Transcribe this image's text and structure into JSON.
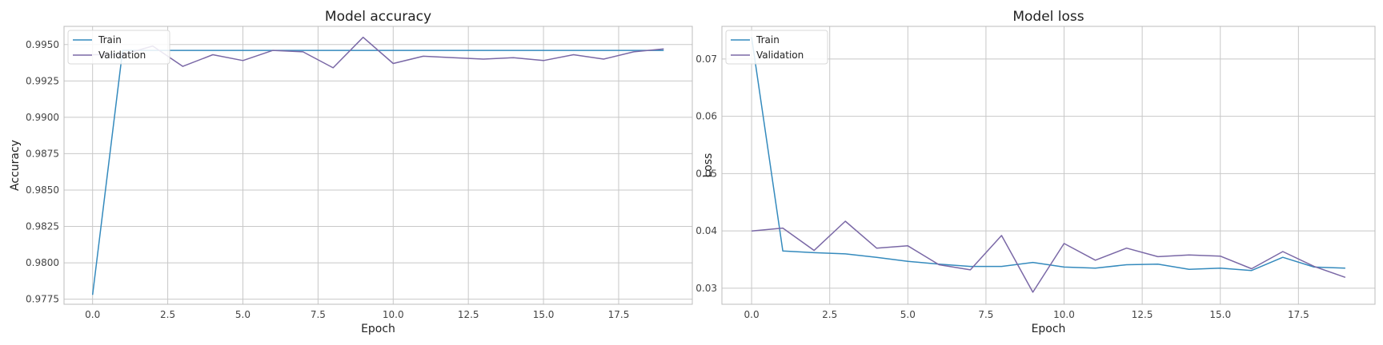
{
  "colors": {
    "train": "#348abd",
    "validation": "#7a68a6",
    "grid": "#c8c8c8",
    "frame": "#bcbcbc"
  },
  "chart_data": [
    {
      "type": "line",
      "title": "Model accuracy",
      "xlabel": "Epoch",
      "ylabel": "Accuracy",
      "xlim": [
        -0.95,
        19.95
      ],
      "ylim": [
        0.97715,
        0.99625
      ],
      "xticks": [
        0.0,
        2.5,
        5.0,
        7.5,
        10.0,
        12.5,
        15.0,
        17.5
      ],
      "xtick_labels": [
        "0.0",
        "2.5",
        "5.0",
        "7.5",
        "10.0",
        "12.5",
        "15.0",
        "17.5"
      ],
      "yticks": [
        0.9775,
        0.98,
        0.9825,
        0.985,
        0.9875,
        0.99,
        0.9925,
        0.995
      ],
      "ytick_labels": [
        "0.9775",
        "0.9800",
        "0.9825",
        "0.9850",
        "0.9875",
        "0.9900",
        "0.9925",
        "0.9950"
      ],
      "grid": true,
      "legend": "top-left",
      "x": [
        0,
        1,
        2,
        3,
        4,
        5,
        6,
        7,
        8,
        9,
        10,
        11,
        12,
        13,
        14,
        15,
        16,
        17,
        18,
        19
      ],
      "series": [
        {
          "name": "Train",
          "color": "#348abd",
          "values": [
            0.9778,
            0.9946,
            0.9946,
            0.9946,
            0.9946,
            0.9946,
            0.9946,
            0.9946,
            0.9946,
            0.9946,
            0.9946,
            0.9946,
            0.9946,
            0.9946,
            0.9946,
            0.9946,
            0.9946,
            0.9946,
            0.9946,
            0.9946
          ]
        },
        {
          "name": "Validation",
          "color": "#7a68a6",
          "values": [
            0.9943,
            0.9943,
            0.9949,
            0.9935,
            0.9943,
            0.9939,
            0.9946,
            0.9945,
            0.9934,
            0.9955,
            0.9937,
            0.9942,
            0.9941,
            0.994,
            0.9941,
            0.9939,
            0.9943,
            0.994,
            0.9945,
            0.9947
          ]
        }
      ]
    },
    {
      "type": "line",
      "title": "Model loss",
      "xlabel": "Epoch",
      "ylabel": "Loss",
      "xlim": [
        -0.95,
        19.95
      ],
      "ylim": [
        0.0272,
        0.0757
      ],
      "xticks": [
        0.0,
        2.5,
        5.0,
        7.5,
        10.0,
        12.5,
        15.0,
        17.5
      ],
      "xtick_labels": [
        "0.0",
        "2.5",
        "5.0",
        "7.5",
        "10.0",
        "12.5",
        "15.0",
        "17.5"
      ],
      "yticks": [
        0.03,
        0.04,
        0.05,
        0.06,
        0.07
      ],
      "ytick_labels": [
        "0.03",
        "0.04",
        "0.05",
        "0.06",
        "0.07"
      ],
      "grid": true,
      "legend": "top-left",
      "x": [
        0,
        1,
        2,
        3,
        4,
        5,
        6,
        7,
        8,
        9,
        10,
        11,
        12,
        13,
        14,
        15,
        16,
        17,
        18,
        19
      ],
      "series": [
        {
          "name": "Train",
          "color": "#348abd",
          "values": [
            0.0738,
            0.0365,
            0.0362,
            0.036,
            0.0354,
            0.0347,
            0.0342,
            0.0338,
            0.0338,
            0.0345,
            0.0337,
            0.0335,
            0.0341,
            0.0342,
            0.0333,
            0.0335,
            0.0331,
            0.0354,
            0.0337,
            0.0335
          ]
        },
        {
          "name": "Validation",
          "color": "#7a68a6",
          "values": [
            0.04,
            0.0405,
            0.0366,
            0.0417,
            0.037,
            0.0374,
            0.0341,
            0.0332,
            0.0392,
            0.0293,
            0.0378,
            0.0349,
            0.037,
            0.0355,
            0.0358,
            0.0356,
            0.0334,
            0.0364,
            0.0338,
            0.0319
          ]
        }
      ]
    }
  ]
}
